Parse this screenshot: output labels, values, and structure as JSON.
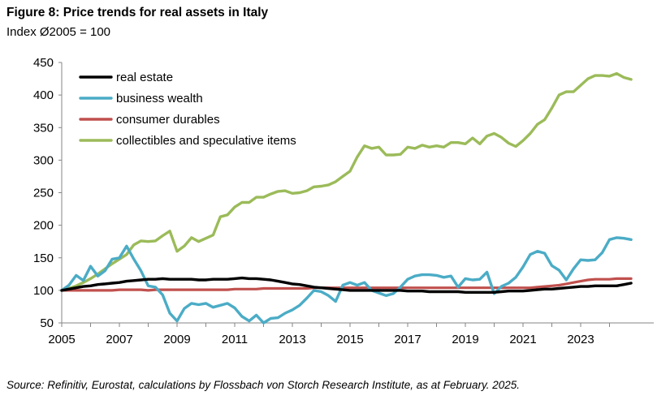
{
  "header": {
    "title": "Figure 8: Price trends for real assets in Italy",
    "subtitle": "Index Ø2005 = 100"
  },
  "footer": {
    "source": "Source: Refinitiv, Eurostat, calculations by Flossbach von Storch Research Institute, as at February. 2025."
  },
  "colors": {
    "real_estate": "#000000",
    "business_wealth": "#4bacc6",
    "consumer_durables": "#c0504d",
    "collectibles": "#9bbb59"
  },
  "chart_data": {
    "type": "line",
    "title": "Figure 8: Price trends for real assets in Italy",
    "ylabel": "",
    "xlabel": "",
    "xlim": [
      2005,
      2024.75
    ],
    "ylim": [
      50,
      450
    ],
    "x_ticks": [
      "2005",
      "2007",
      "2009",
      "2011",
      "2013",
      "2015",
      "2017",
      "2019",
      "2021",
      "2023"
    ],
    "y_ticks": [
      "50",
      "100",
      "150",
      "200",
      "250",
      "300",
      "350",
      "400",
      "450"
    ],
    "grid": false,
    "legend_position": "top-left",
    "x": [
      2005.0,
      2005.25,
      2005.5,
      2005.75,
      2006.0,
      2006.25,
      2006.5,
      2006.75,
      2007.0,
      2007.25,
      2007.5,
      2007.75,
      2008.0,
      2008.25,
      2008.5,
      2008.75,
      2009.0,
      2009.25,
      2009.5,
      2009.75,
      2010.0,
      2010.25,
      2010.5,
      2010.75,
      2011.0,
      2011.25,
      2011.5,
      2011.75,
      2012.0,
      2012.25,
      2012.5,
      2012.75,
      2013.0,
      2013.25,
      2013.5,
      2013.75,
      2014.0,
      2014.25,
      2014.5,
      2014.75,
      2015.0,
      2015.25,
      2015.5,
      2015.75,
      2016.0,
      2016.25,
      2016.5,
      2016.75,
      2017.0,
      2017.25,
      2017.5,
      2017.75,
      2018.0,
      2018.25,
      2018.5,
      2018.75,
      2019.0,
      2019.25,
      2019.5,
      2019.75,
      2020.0,
      2020.25,
      2020.5,
      2020.75,
      2021.0,
      2021.25,
      2021.5,
      2021.75,
      2022.0,
      2022.25,
      2022.5,
      2022.75,
      2023.0,
      2023.25,
      2023.5,
      2023.75,
      2024.0,
      2024.25,
      2024.5,
      2024.75
    ],
    "series": [
      {
        "name": "real estate",
        "color": "#000000",
        "values": [
          100,
          102,
          104,
          106,
          107,
          109,
          110,
          111,
          112,
          114,
          115,
          116,
          117,
          117,
          118,
          117,
          117,
          117,
          117,
          116,
          116,
          117,
          117,
          117,
          118,
          119,
          118,
          118,
          117,
          116,
          114,
          112,
          110,
          109,
          107,
          105,
          104,
          103,
          102,
          101,
          100,
          100,
          100,
          100,
          100,
          100,
          100,
          100,
          99,
          99,
          99,
          98,
          98,
          98,
          98,
          98,
          97,
          97,
          97,
          97,
          97,
          98,
          99,
          99,
          99,
          100,
          101,
          102,
          102,
          103,
          104,
          105,
          106,
          106,
          107,
          107,
          107,
          107,
          109,
          111
        ]
      },
      {
        "name": "business wealth",
        "color": "#4bacc6",
        "values": [
          100,
          108,
          123,
          115,
          137,
          122,
          130,
          148,
          150,
          168,
          148,
          130,
          107,
          105,
          93,
          65,
          53,
          72,
          80,
          78,
          80,
          74,
          77,
          80,
          73,
          60,
          53,
          62,
          50,
          57,
          58,
          65,
          70,
          77,
          88,
          100,
          98,
          92,
          83,
          108,
          112,
          108,
          112,
          100,
          96,
          92,
          95,
          105,
          117,
          122,
          124,
          124,
          123,
          120,
          122,
          105,
          118,
          116,
          117,
          128,
          95,
          106,
          111,
          120,
          136,
          155,
          160,
          157,
          138,
          131,
          116,
          133,
          147,
          146,
          147,
          158,
          178,
          181,
          180,
          178
        ]
      },
      {
        "name": "consumer durables",
        "color": "#c0504d",
        "values": [
          100,
          100,
          100,
          100,
          100,
          100,
          100,
          100,
          101,
          101,
          101,
          101,
          100,
          101,
          101,
          101,
          101,
          101,
          101,
          101,
          101,
          101,
          101,
          101,
          102,
          102,
          102,
          102,
          103,
          103,
          103,
          103,
          103,
          103,
          103,
          104,
          104,
          104,
          104,
          104,
          104,
          104,
          104,
          104,
          104,
          104,
          104,
          104,
          104,
          104,
          104,
          104,
          104,
          104,
          104,
          104,
          104,
          104,
          104,
          104,
          104,
          104,
          104,
          104,
          104,
          104,
          105,
          106,
          107,
          108,
          110,
          112,
          114,
          116,
          117,
          117,
          117,
          118,
          118,
          118
        ]
      },
      {
        "name": "collectibles and speculative items",
        "color": "#9bbb59",
        "values": [
          100,
          103,
          107,
          112,
          118,
          125,
          133,
          141,
          148,
          155,
          170,
          176,
          175,
          176,
          184,
          191,
          160,
          168,
          181,
          175,
          180,
          185,
          213,
          216,
          228,
          235,
          235,
          243,
          243,
          248,
          252,
          253,
          249,
          250,
          253,
          259,
          260,
          262,
          267,
          275,
          283,
          305,
          322,
          318,
          320,
          308,
          308,
          309,
          320,
          318,
          323,
          320,
          322,
          320,
          327,
          327,
          325,
          334,
          325,
          337,
          341,
          335,
          326,
          321,
          330,
          341,
          355,
          362,
          380,
          400,
          405,
          405,
          415,
          425,
          430,
          430,
          429,
          433,
          427,
          424
        ]
      }
    ]
  }
}
